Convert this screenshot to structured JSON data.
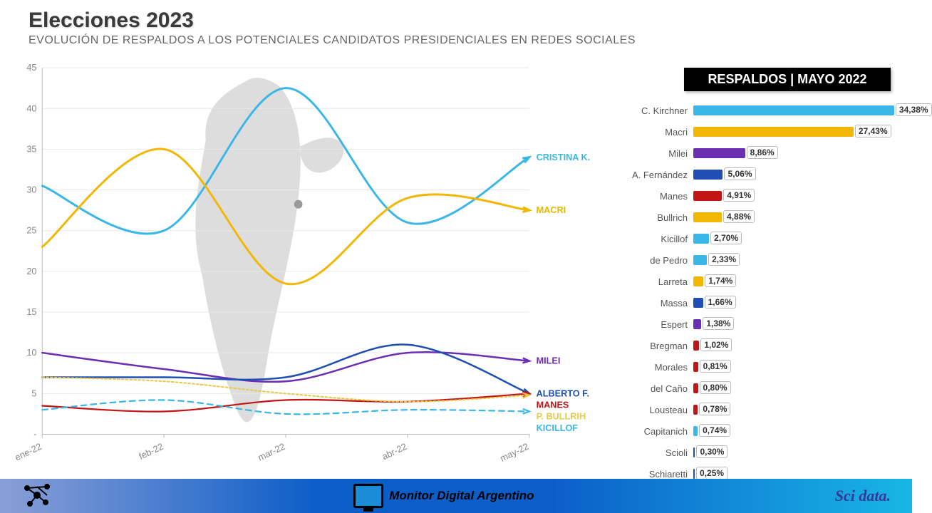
{
  "header": {
    "title": "Elecciones 2023",
    "subtitle": "EVOLUCIÓN DE RESPALDOS A LOS POTENCIALES CANDIDATOS PRESIDENCIALES EN REDES SOCIALES"
  },
  "chart": {
    "type": "line",
    "background_color": "#ffffff",
    "grid_color": "#e8e8e8",
    "ylim": [
      0,
      45
    ],
    "ytick_step": 5,
    "x_categories": [
      "ene-22",
      "feb-22",
      "mar-22",
      "abr-22",
      "may-22"
    ],
    "map_silhouette_color": "#d9d9d9",
    "series": [
      {
        "name": "CRISTINA K.",
        "label_color": "#3ab7e6",
        "color": "#3ab7e6",
        "width": 3,
        "dash": "none",
        "values": [
          30.5,
          25.0,
          42.5,
          26.0,
          34.0
        ]
      },
      {
        "name": "MACRI",
        "label_color": "#e6b800",
        "color": "#f2b705",
        "width": 3,
        "dash": "none",
        "values": [
          23.0,
          35.0,
          18.5,
          29.0,
          27.5
        ]
      },
      {
        "name": "MILEI",
        "label_color": "#6b2fb3",
        "color": "#6b2fb3",
        "width": 2.5,
        "dash": "none",
        "values": [
          10.0,
          8.0,
          6.5,
          10.0,
          9.0
        ]
      },
      {
        "name": "ALBERTO F.",
        "label_color": "#1f4fb3",
        "color": "#1f4fb3",
        "width": 2.5,
        "dash": "none",
        "values": [
          7.0,
          7.0,
          7.0,
          11.0,
          5.0
        ]
      },
      {
        "name": "MANES",
        "label_color": "#c21515",
        "color": "#c21515",
        "width": 2.2,
        "dash": "none",
        "values": [
          3.5,
          2.8,
          4.2,
          4.0,
          5.0
        ]
      },
      {
        "name": "P. BULLRIH",
        "label_color": "#e6c94d",
        "color": "#e6c94d",
        "width": 2,
        "dash": "3,3",
        "values": [
          7.0,
          6.5,
          5.0,
          4.0,
          4.8
        ]
      },
      {
        "name": "KICILLOF",
        "label_color": "#3ab7e6",
        "color": "#3ab7e6",
        "width": 2.2,
        "dash": "8,6",
        "values": [
          3.0,
          4.2,
          2.5,
          3.0,
          2.8
        ]
      }
    ]
  },
  "side": {
    "title": "RESPALDOS | MAYO 2022",
    "max_scale": 35,
    "rows": [
      {
        "label": "C. Kirchner",
        "value": 34.38,
        "display": "34,38%",
        "color": "#3ab7e6"
      },
      {
        "label": "Macri",
        "value": 27.43,
        "display": "27,43%",
        "color": "#f2b705"
      },
      {
        "label": "Milei",
        "value": 8.86,
        "display": "8,86%",
        "color": "#6b2fb3"
      },
      {
        "label": "A. Fernández",
        "value": 5.06,
        "display": "5,06%",
        "color": "#1f4fb3"
      },
      {
        "label": "Manes",
        "value": 4.91,
        "display": "4,91%",
        "color": "#c21515"
      },
      {
        "label": "Bullrich",
        "value": 4.88,
        "display": "4,88%",
        "color": "#f2b705"
      },
      {
        "label": "Kicillof",
        "value": 2.7,
        "display": "2,70%",
        "color": "#3ab7e6"
      },
      {
        "label": "de Pedro",
        "value": 2.33,
        "display": "2,33%",
        "color": "#3ab7e6"
      },
      {
        "label": "Larreta",
        "value": 1.74,
        "display": "1,74%",
        "color": "#f2b705"
      },
      {
        "label": "Massa",
        "value": 1.66,
        "display": "1,66%",
        "color": "#1f4fb3"
      },
      {
        "label": "Espert",
        "value": 1.38,
        "display": "1,38%",
        "color": "#6b2fb3"
      },
      {
        "label": "Bregman",
        "value": 1.02,
        "display": "1,02%",
        "color": "#c21515"
      },
      {
        "label": "Morales",
        "value": 0.81,
        "display": "0,81%",
        "color": "#c21515"
      },
      {
        "label": "del Caño",
        "value": 0.8,
        "display": "0,80%",
        "color": "#c21515"
      },
      {
        "label": "Lousteau",
        "value": 0.78,
        "display": "0,78%",
        "color": "#c21515"
      },
      {
        "label": "Capitanich",
        "value": 0.74,
        "display": "0,74%",
        "color": "#3ab7e6"
      },
      {
        "label": "Scioli",
        "value": 0.3,
        "display": "0,30%",
        "color": "#1f4fb3"
      },
      {
        "label": "Schiaretti",
        "value": 0.25,
        "display": "0,25%",
        "color": "#1f4fb3"
      }
    ]
  },
  "footer": {
    "center": "Monitor Digital Argentino",
    "right": "Sci data."
  }
}
